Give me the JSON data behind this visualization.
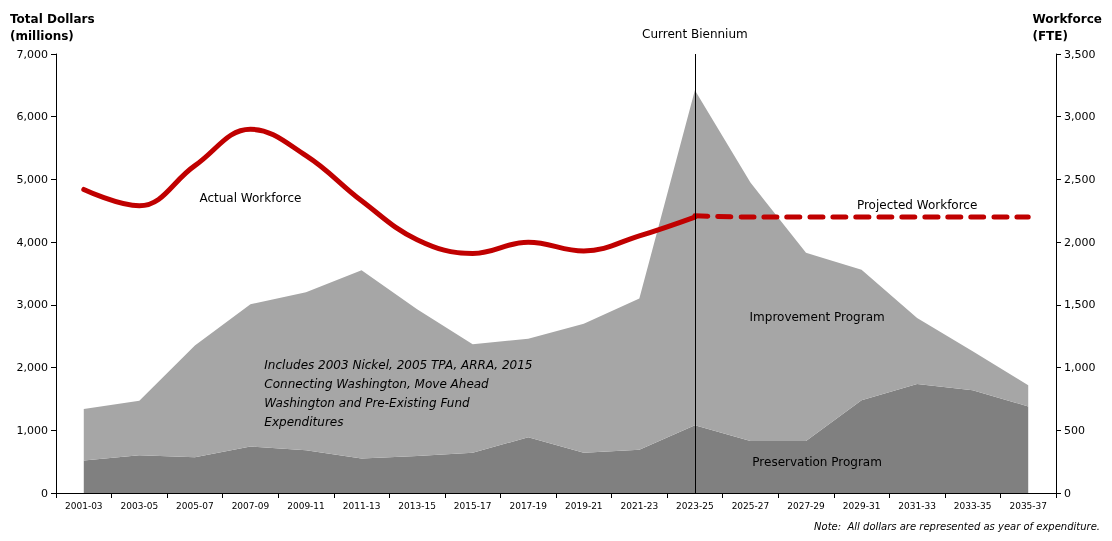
{
  "chart_data": {
    "type": "area",
    "stacked": true,
    "ylabel": "Total Dollars (millions)",
    "y2label": "Workforce (FTE)",
    "categories": [
      "2001-03",
      "2003-05",
      "2005-07",
      "2007-09",
      "2009-11",
      "2011-13",
      "2013-15",
      "2015-17",
      "2017-19",
      "2019-21",
      "2021-23",
      "2023-25",
      "2025-27",
      "2027-29",
      "2029-31",
      "2031-33",
      "2033-35",
      "2035-37"
    ],
    "series": [
      {
        "name": "Preservation Program",
        "color": "#808080",
        "values": [
          520,
          600,
          570,
          740,
          680,
          550,
          590,
          640,
          890,
          640,
          690,
          1080,
          830,
          830,
          1480,
          1740,
          1640,
          1380
        ]
      },
      {
        "name": "Improvement Program",
        "color": "#a6a6a6",
        "values": [
          820,
          870,
          1780,
          2270,
          2520,
          3000,
          2340,
          1730,
          1570,
          2060,
          2410,
          5340,
          4120,
          3000,
          2080,
          1050,
          620,
          340
        ]
      },
      {
        "name": "Actual Workforce",
        "type": "line",
        "axis": "y2",
        "color": "#c00000",
        "line_style": "solid",
        "values": [
          2420,
          2290,
          2610,
          2900,
          2690,
          2330,
          2020,
          1910,
          2000,
          1930,
          2050,
          2200,
          null,
          null,
          null,
          null,
          null,
          null
        ]
      },
      {
        "name": "Projected Workforce",
        "type": "line",
        "axis": "y2",
        "color": "#c00000",
        "line_style": "dashed",
        "values": [
          null,
          null,
          null,
          null,
          null,
          null,
          null,
          null,
          null,
          null,
          null,
          2210,
          2200,
          2200,
          2200,
          2200,
          2200,
          2200
        ]
      }
    ],
    "ylim": [
      0,
      7000
    ],
    "yticks": [
      0,
      {
        "value": 1000,
        "label": "1,000"
      },
      {
        "value": 2000,
        "label": "2,000"
      },
      {
        "value": 3000,
        "label": "3,000"
      },
      {
        "value": 4000,
        "label": "4,000"
      },
      {
        "value": 5000,
        "label": "5,000"
      },
      {
        "value": 6000,
        "label": "6,000"
      },
      {
        "value": 7000,
        "label": "7,000"
      }
    ],
    "y2lim": [
      0,
      3500
    ],
    "y2ticks": [
      0,
      500,
      {
        "value": 1000,
        "label": "1,000"
      },
      {
        "value": 1500,
        "label": "1,500"
      },
      {
        "value": 2000,
        "label": "2,000"
      },
      {
        "value": 2500,
        "label": "2,500"
      },
      {
        "value": 3000,
        "label": "3,000"
      },
      {
        "value": 3500,
        "label": "3,500"
      }
    ],
    "ref_lines": [
      {
        "axis": "x",
        "value": "2023-25",
        "label": "Current Biennium",
        "color": "#000000"
      }
    ],
    "annotations": [
      "Includes 2003 Nickel, 2005 TPA, ARRA, 2015 Connecting Washington, Move Ahead Washington and Pre-Existing Fund Expenditures",
      "Note:  All dollars are represented as year of expenditure."
    ],
    "grid": false,
    "legend": false,
    "marker": "none"
  }
}
